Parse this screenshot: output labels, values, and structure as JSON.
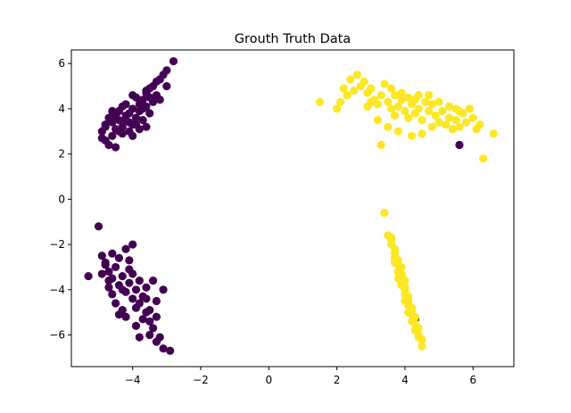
{
  "chart_data": {
    "type": "scatter",
    "title": "Grouth Truth Data",
    "xlabel": "",
    "ylabel": "",
    "xlim": [
      -5.8,
      7.2
    ],
    "ylim": [
      -7.4,
      6.6
    ],
    "x_ticks": [
      -4,
      -2,
      0,
      2,
      4,
      6
    ],
    "y_ticks": [
      -6,
      -4,
      -2,
      0,
      2,
      4,
      6
    ],
    "x_tick_labels": [
      "−4",
      "−2",
      "0",
      "2",
      "4",
      "6"
    ],
    "y_tick_labels": [
      "−6",
      "−4",
      "−2",
      "0",
      "2",
      "4",
      "6"
    ],
    "grid": false,
    "legend": "none",
    "colors": {
      "class0": "#440154",
      "class1": "#fde725"
    },
    "series": [
      {
        "color": "#440154",
        "points": [
          [
            -4.9,
            3.0
          ],
          [
            -4.8,
            3.3
          ],
          [
            -4.7,
            3.6
          ],
          [
            -4.6,
            3.4
          ],
          [
            -4.5,
            3.7
          ],
          [
            -4.4,
            3.9
          ],
          [
            -4.3,
            3.2
          ],
          [
            -4.2,
            3.5
          ],
          [
            -4.1,
            3.8
          ],
          [
            -4.0,
            4.0
          ],
          [
            -3.9,
            3.6
          ],
          [
            -3.8,
            4.2
          ],
          [
            -3.7,
            4.4
          ],
          [
            -3.6,
            4.7
          ],
          [
            -3.5,
            4.9
          ],
          [
            -3.4,
            5.0
          ],
          [
            -3.3,
            5.2
          ],
          [
            -3.2,
            5.3
          ],
          [
            -3.0,
            5.7
          ],
          [
            -2.8,
            6.1
          ],
          [
            -4.6,
            2.8
          ],
          [
            -4.7,
            2.4
          ],
          [
            -4.8,
            2.6
          ],
          [
            -4.5,
            3.1
          ],
          [
            -4.3,
            2.9
          ],
          [
            -4.0,
            3.3
          ],
          [
            -3.9,
            4.5
          ],
          [
            -3.6,
            4.1
          ],
          [
            -3.5,
            3.8
          ],
          [
            -3.8,
            3.1
          ],
          [
            -4.2,
            4.2
          ],
          [
            -4.4,
            3.5
          ],
          [
            -4.1,
            3.0
          ],
          [
            -3.7,
            3.5
          ],
          [
            -3.3,
            4.6
          ],
          [
            -3.1,
            5.5
          ],
          [
            -3.4,
            4.3
          ],
          [
            -4.6,
            3.9
          ],
          [
            -4.2,
            3.7
          ],
          [
            -4.0,
            4.6
          ],
          [
            -4.5,
            2.3
          ],
          [
            -4.9,
            2.7
          ],
          [
            -3.8,
            3.9
          ],
          [
            -3.6,
            3.2
          ],
          [
            -4.3,
            4.1
          ],
          [
            -3.0,
            5.0
          ],
          [
            -3.5,
            4.5
          ],
          [
            -3.9,
            3.3
          ],
          [
            -4.4,
            3.0
          ],
          [
            -4.1,
            3.4
          ],
          [
            -3.2,
            4.4
          ],
          [
            -3.7,
            4.0
          ],
          [
            -4.8,
            3.2
          ],
          [
            -4.0,
            2.8
          ],
          [
            -3.6,
            4.8
          ],
          [
            -5.0,
            -1.2
          ],
          [
            -4.9,
            -2.5
          ],
          [
            -4.8,
            -2.8
          ],
          [
            -4.7,
            -3.2
          ],
          [
            -4.6,
            -3.5
          ],
          [
            -4.5,
            -3.0
          ],
          [
            -4.4,
            -3.8
          ],
          [
            -4.3,
            -3.4
          ],
          [
            -4.2,
            -4.1
          ],
          [
            -4.1,
            -3.7
          ],
          [
            -4.0,
            -4.4
          ],
          [
            -3.9,
            -4.0
          ],
          [
            -3.8,
            -4.6
          ],
          [
            -3.7,
            -4.3
          ],
          [
            -3.6,
            -5.0
          ],
          [
            -3.5,
            -5.4
          ],
          [
            -3.4,
            -5.7
          ],
          [
            -3.3,
            -6.3
          ],
          [
            -3.2,
            -6.1
          ],
          [
            -3.1,
            -6.6
          ],
          [
            -2.9,
            -6.7
          ],
          [
            -5.3,
            -3.4
          ],
          [
            -4.9,
            -3.3
          ],
          [
            -4.6,
            -4.2
          ],
          [
            -4.4,
            -2.6
          ],
          [
            -4.2,
            -2.2
          ],
          [
            -4.0,
            -2.0
          ],
          [
            -4.1,
            -3.1
          ],
          [
            -3.8,
            -3.6
          ],
          [
            -3.6,
            -3.9
          ],
          [
            -3.4,
            -3.6
          ],
          [
            -3.3,
            -4.5
          ],
          [
            -3.5,
            -4.9
          ],
          [
            -3.7,
            -5.3
          ],
          [
            -3.9,
            -5.6
          ],
          [
            -4.3,
            -4.9
          ],
          [
            -4.5,
            -4.6
          ],
          [
            -4.7,
            -3.9
          ],
          [
            -4.8,
            -2.9
          ],
          [
            -4.6,
            -2.4
          ],
          [
            -3.1,
            -4.0
          ],
          [
            -3.8,
            -6.1
          ],
          [
            -4.4,
            -5.1
          ],
          [
            -4.2,
            -5.2
          ],
          [
            -3.6,
            -4.4
          ],
          [
            -4.0,
            -3.3
          ],
          [
            -4.3,
            -4.0
          ],
          [
            -3.9,
            -4.8
          ],
          [
            -3.5,
            -6.0
          ],
          [
            -4.1,
            -2.7
          ],
          [
            -4.7,
            -3.6
          ],
          [
            -3.3,
            -5.2
          ],
          [
            5.6,
            2.4
          ],
          [
            4.3,
            -5.3
          ]
        ]
      },
      {
        "color": "#fde725",
        "points": [
          [
            1.5,
            4.3
          ],
          [
            2.0,
            4.0
          ],
          [
            2.1,
            4.3
          ],
          [
            2.3,
            4.6
          ],
          [
            2.5,
            4.8
          ],
          [
            2.7,
            5.0
          ],
          [
            2.9,
            4.7
          ],
          [
            3.1,
            4.4
          ],
          [
            3.2,
            4.2
          ],
          [
            3.3,
            4.6
          ],
          [
            3.5,
            4.3
          ],
          [
            3.6,
            4.0
          ],
          [
            3.7,
            3.7
          ],
          [
            3.8,
            4.1
          ],
          [
            3.9,
            4.4
          ],
          [
            4.0,
            3.9
          ],
          [
            4.1,
            3.6
          ],
          [
            4.2,
            4.2
          ],
          [
            4.3,
            3.8
          ],
          [
            4.4,
            4.0
          ],
          [
            4.5,
            3.5
          ],
          [
            4.6,
            4.3
          ],
          [
            4.7,
            3.9
          ],
          [
            4.8,
            3.2
          ],
          [
            4.9,
            3.7
          ],
          [
            5.0,
            3.4
          ],
          [
            5.1,
            3.9
          ],
          [
            5.2,
            3.3
          ],
          [
            5.3,
            3.6
          ],
          [
            5.4,
            3.1
          ],
          [
            5.5,
            3.5
          ],
          [
            5.6,
            3.2
          ],
          [
            5.7,
            3.8
          ],
          [
            5.8,
            3.4
          ],
          [
            5.9,
            4.0
          ],
          [
            6.0,
            3.6
          ],
          [
            6.1,
            3.1
          ],
          [
            6.3,
            1.8
          ],
          [
            6.6,
            2.9
          ],
          [
            2.4,
            5.3
          ],
          [
            2.6,
            5.5
          ],
          [
            2.8,
            5.2
          ],
          [
            3.0,
            4.9
          ],
          [
            3.4,
            5.1
          ],
          [
            3.6,
            4.9
          ],
          [
            3.9,
            4.7
          ],
          [
            4.1,
            4.5
          ],
          [
            4.4,
            4.6
          ],
          [
            4.7,
            4.6
          ],
          [
            5.0,
            4.3
          ],
          [
            5.3,
            4.1
          ],
          [
            5.6,
            3.9
          ],
          [
            3.2,
            3.5
          ],
          [
            3.5,
            3.2
          ],
          [
            3.8,
            3.0
          ],
          [
            4.2,
            2.8
          ],
          [
            4.5,
            2.9
          ],
          [
            3.3,
            2.4
          ],
          [
            2.2,
            4.9
          ],
          [
            2.9,
            4.1
          ],
          [
            3.7,
            4.6
          ],
          [
            4.8,
            4.2
          ],
          [
            5.5,
            4.0
          ],
          [
            6.2,
            3.3
          ],
          [
            4.3,
            4.4
          ],
          [
            3.0,
            4.3
          ],
          [
            3.4,
            -0.6
          ],
          [
            3.5,
            -1.6
          ],
          [
            3.6,
            -1.8
          ],
          [
            3.7,
            -2.2
          ],
          [
            3.7,
            -2.6
          ],
          [
            3.8,
            -2.9
          ],
          [
            3.8,
            -3.2
          ],
          [
            3.9,
            -3.4
          ],
          [
            3.9,
            -3.7
          ],
          [
            4.0,
            -3.9
          ],
          [
            4.0,
            -4.2
          ],
          [
            4.1,
            -4.4
          ],
          [
            4.1,
            -4.7
          ],
          [
            4.2,
            -4.9
          ],
          [
            4.2,
            -5.1
          ],
          [
            4.3,
            -5.5
          ],
          [
            4.3,
            -5.8
          ],
          [
            4.4,
            -6.0
          ],
          [
            4.5,
            -6.2
          ],
          [
            4.5,
            -6.5
          ],
          [
            3.6,
            -2.0
          ],
          [
            3.7,
            -2.4
          ],
          [
            3.8,
            -2.7
          ],
          [
            3.9,
            -3.0
          ],
          [
            3.9,
            -3.3
          ],
          [
            4.0,
            -3.6
          ],
          [
            4.0,
            -4.0
          ],
          [
            4.1,
            -4.3
          ],
          [
            4.1,
            -4.6
          ],
          [
            4.2,
            -4.8
          ],
          [
            4.3,
            -5.2
          ],
          [
            4.4,
            -5.7
          ],
          [
            3.8,
            -3.5
          ],
          [
            3.9,
            -3.8
          ],
          [
            4.0,
            -4.5
          ],
          [
            4.2,
            -5.4
          ],
          [
            4.4,
            -6.1
          ],
          [
            3.6,
            -1.7
          ],
          [
            3.7,
            -2.8
          ],
          [
            4.1,
            -5.0
          ]
        ]
      }
    ]
  }
}
